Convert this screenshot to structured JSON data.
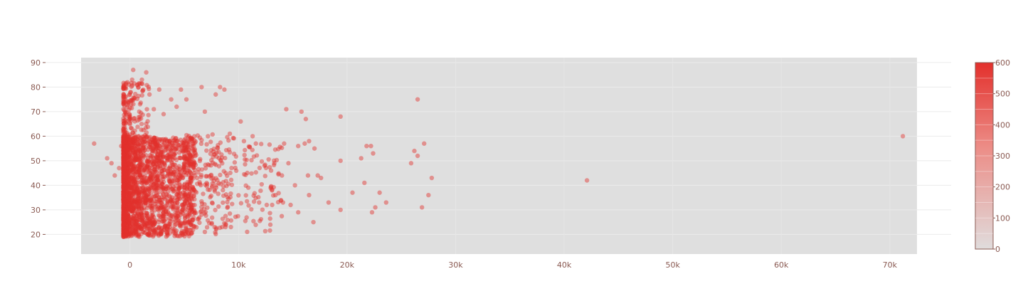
{
  "chart_data": {
    "type": "scatter",
    "title": "",
    "xlabel": "",
    "ylabel": "",
    "xlim": [
      -4500,
      72500
    ],
    "ylim": [
      12,
      92
    ],
    "x_ticks": [
      0,
      10000,
      20000,
      30000,
      40000,
      50000,
      60000,
      70000
    ],
    "x_tick_labels": [
      "0",
      "10k",
      "20k",
      "30k",
      "40k",
      "50k",
      "60k",
      "70k"
    ],
    "y_ticks": [
      20,
      30,
      40,
      50,
      60,
      70,
      80,
      90
    ],
    "y_tick_labels": [
      "20",
      "30",
      "40",
      "50",
      "60",
      "70",
      "80",
      "90"
    ],
    "grid": true,
    "plot_background": "#dfdfdf",
    "marker_color": "#e3302c",
    "marker_opacity": 0.45,
    "density_note_points": [
      [
        -3300,
        57
      ],
      [
        -2100,
        51
      ],
      [
        -1700,
        49
      ],
      [
        -1400,
        44
      ],
      [
        -1000,
        47
      ],
      [
        -800,
        56
      ],
      [
        -600,
        39
      ],
      [
        -500,
        27
      ],
      [
        1200,
        21
      ],
      [
        1600,
        20
      ],
      [
        2400,
        22
      ],
      [
        3500,
        22
      ],
      [
        4100,
        22
      ],
      [
        6900,
        21
      ],
      [
        8500,
        23
      ],
      [
        8800,
        23
      ],
      [
        9300,
        23
      ],
      [
        300,
        87
      ],
      [
        1500,
        86
      ],
      [
        200,
        83
      ],
      [
        1100,
        83
      ],
      [
        700,
        81
      ],
      [
        2700,
        79
      ],
      [
        4700,
        79
      ],
      [
        6600,
        80
      ],
      [
        8300,
        80
      ],
      [
        8700,
        79
      ],
      [
        1800,
        77
      ],
      [
        3800,
        75
      ],
      [
        5200,
        75
      ],
      [
        4300,
        72
      ],
      [
        2200,
        71
      ],
      [
        3100,
        69
      ],
      [
        6900,
        70
      ],
      [
        7900,
        77
      ],
      [
        9200,
        61
      ],
      [
        10200,
        66
      ],
      [
        10500,
        58
      ],
      [
        11300,
        60
      ],
      [
        11600,
        57
      ],
      [
        12400,
        48
      ],
      [
        13000,
        46
      ],
      [
        14400,
        71
      ],
      [
        15800,
        70
      ],
      [
        16200,
        67
      ],
      [
        14200,
        57
      ],
      [
        15500,
        56
      ],
      [
        16100,
        57
      ],
      [
        16500,
        58
      ],
      [
        17000,
        55
      ],
      [
        13300,
        49
      ],
      [
        14000,
        44
      ],
      [
        14600,
        49
      ],
      [
        15200,
        40
      ],
      [
        16400,
        44
      ],
      [
        17300,
        44
      ],
      [
        17600,
        43
      ],
      [
        11900,
        33
      ],
      [
        12600,
        32
      ],
      [
        13100,
        32
      ],
      [
        13400,
        36
      ],
      [
        14100,
        33
      ],
      [
        14800,
        32
      ],
      [
        15500,
        29
      ],
      [
        16500,
        36
      ],
      [
        16900,
        25
      ],
      [
        18300,
        33
      ],
      [
        19400,
        30
      ],
      [
        20500,
        37
      ],
      [
        19400,
        68
      ],
      [
        19400,
        50
      ],
      [
        21300,
        51
      ],
      [
        21600,
        41
      ],
      [
        21800,
        56
      ],
      [
        22200,
        56
      ],
      [
        22400,
        53
      ],
      [
        22300,
        29
      ],
      [
        22600,
        31
      ],
      [
        23000,
        37
      ],
      [
        23600,
        33
      ],
      [
        26500,
        75
      ],
      [
        26200,
        54
      ],
      [
        26500,
        52
      ],
      [
        25900,
        49
      ],
      [
        27100,
        57
      ],
      [
        27500,
        36
      ],
      [
        27800,
        43
      ],
      [
        26900,
        31
      ],
      [
        42100,
        42
      ],
      [
        71200,
        60
      ]
    ],
    "dense_region": {
      "x_range": [
        -600,
        6000
      ],
      "y_range": [
        19,
        60
      ]
    },
    "colorbar": {
      "ticks": [
        0,
        100,
        200,
        300,
        400,
        500,
        600
      ],
      "tick_labels": [
        "0",
        "100",
        "200",
        "300",
        "400",
        "500",
        "600"
      ],
      "range": [
        0,
        600
      ],
      "color_low": "#e0dcdc",
      "color_high": "#e3302c"
    }
  }
}
